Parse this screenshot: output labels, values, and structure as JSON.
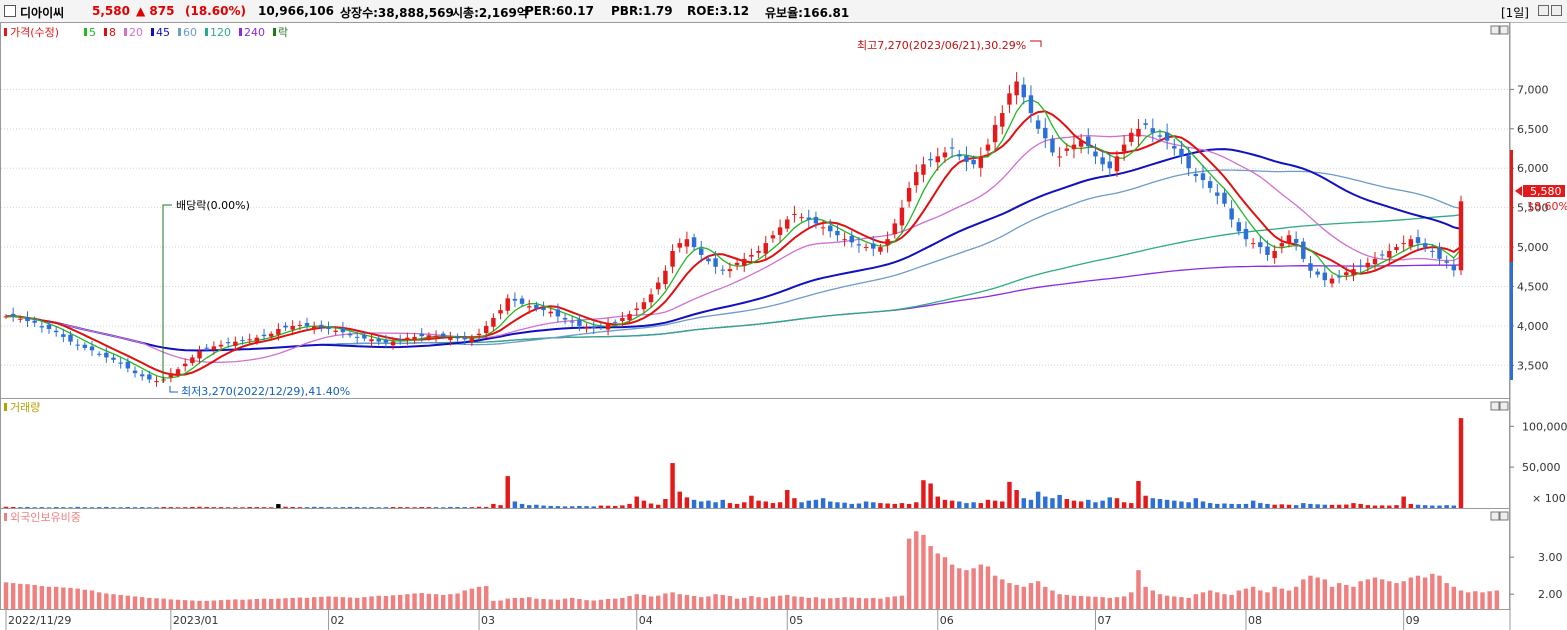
{
  "header": {
    "name": "디아이씨",
    "price": "5,580",
    "change": "▲ 875",
    "change_pct": "(18.60%)",
    "volume": "10,966,106",
    "shares": "상장수:38,888,569",
    "mktcap": "시총:2,169억",
    "per": "PER:60.17",
    "pbr": "PBR:1.79",
    "roe": "ROE:3.12",
    "reserve": "유보율:166.81",
    "period": "[1일]"
  },
  "legend": {
    "price_label": "가격(수정)",
    "ma": [
      {
        "label": "5",
        "color": "#21b821"
      },
      {
        "label": "8",
        "color": "#e01010"
      },
      {
        "label": "20",
        "color": "#d070d0"
      },
      {
        "label": "45",
        "color": "#1010c0"
      },
      {
        "label": "60",
        "color": "#6a9cc8"
      },
      {
        "label": "120",
        "color": "#2eaa88"
      },
      {
        "label": "240",
        "color": "#8a2be2"
      }
    ],
    "ex_label": "락",
    "volume_label": "거래량",
    "foreign_label": "외국인보유비중"
  },
  "annotations": {
    "high": "최고7,270(2023/06/21),30.29%",
    "low": "최저3,270(2022/12/29),41.40%",
    "dividend": "배당락(0.00%)",
    "current_price": "5,580",
    "current_pct": "18.60%"
  },
  "colors": {
    "up": "#e41a1a",
    "down": "#2c6fd6",
    "ma5": "#21b821",
    "ma8": "#e01010",
    "ma20": "#d070d0",
    "ma45": "#1010c0",
    "ma60": "#6a9cc8",
    "ma120": "#2eaa88",
    "ma240": "#8a2be2",
    "foreign": "#f08080"
  },
  "chart_data": [
    {
      "type": "candlestick",
      "title": "가격(수정)",
      "y_ticks": [
        "7,000",
        "6,500",
        "6,000",
        "5,500",
        "5,000",
        "4,500",
        "4,000",
        "3,500"
      ],
      "ylim": [
        3250,
        7500
      ],
      "x_ticks": [
        "2022/11/29",
        "2023/01",
        "02",
        "03",
        "04",
        "05",
        "06",
        "07",
        "08",
        "09"
      ],
      "x_tick_index": [
        0,
        23,
        45,
        66,
        88,
        109,
        130,
        152,
        173,
        195
      ],
      "closes": [
        4120,
        4130,
        4090,
        4060,
        4040,
        3980,
        3960,
        3920,
        3860,
        3800,
        3760,
        3720,
        3690,
        3640,
        3600,
        3570,
        3520,
        3460,
        3400,
        3360,
        3320,
        3300,
        3320,
        3400,
        3450,
        3520,
        3600,
        3680,
        3720,
        3740,
        3760,
        3780,
        3800,
        3810,
        3830,
        3850,
        3870,
        3900,
        3960,
        3980,
        4000,
        4010,
        4000,
        3990,
        3980,
        3960,
        3940,
        3920,
        3880,
        3850,
        3840,
        3830,
        3800,
        3790,
        3800,
        3820,
        3850,
        3860,
        3870,
        3880,
        3870,
        3860,
        3850,
        3840,
        3830,
        3840,
        3900,
        4000,
        4100,
        4200,
        4350,
        4320,
        4280,
        4250,
        4220,
        4200,
        4180,
        4120,
        4080,
        4050,
        4000,
        3980,
        3970,
        3990,
        4020,
        4050,
        4100,
        4150,
        4220,
        4300,
        4400,
        4550,
        4700,
        4950,
        5050,
        5100,
        5000,
        4900,
        4820,
        4750,
        4700,
        4720,
        4800,
        4850,
        4900,
        4950,
        5050,
        5150,
        5250,
        5350,
        5420,
        5380,
        5350,
        5300,
        5250,
        5200,
        5150,
        5100,
        5060,
        5020,
        5000,
        4980,
        5000,
        5100,
        5300,
        5500,
        5750,
        5950,
        6050,
        6100,
        6150,
        6200,
        6250,
        6150,
        6080,
        6050,
        6150,
        6300,
        6550,
        6700,
        6950,
        7100,
        6900,
        6700,
        6500,
        6380,
        6200,
        6150,
        6250,
        6300,
        6350,
        6280,
        6150,
        6050,
        6000,
        6150,
        6300,
        6450,
        6500,
        6550,
        6450,
        6400,
        6350,
        6250,
        6150,
        6000,
        5900,
        5850,
        5750,
        5650,
        5550,
        5350,
        5200,
        5100,
        5050,
        5000,
        4900,
        4950,
        5050,
        5150,
        5050,
        4850,
        4700,
        4650,
        4580,
        4600,
        4620,
        4680,
        4720,
        4750,
        4800,
        4850,
        4900,
        4950,
        5000,
        5050,
        5100,
        5050,
        5000,
        4950,
        4850,
        4800,
        4705,
        5580
      ],
      "series": [
        {
          "name": "5",
          "window": 5
        },
        {
          "name": "8",
          "window": 8
        },
        {
          "name": "20",
          "window": 20
        },
        {
          "name": "45",
          "window": 45
        },
        {
          "name": "60",
          "window": 60
        },
        {
          "name": "120",
          "window": 120
        },
        {
          "name": "240",
          "window": 240
        }
      ],
      "last_close": 5580,
      "last_change_pct": 18.6
    },
    {
      "type": "bar",
      "title": "거래량",
      "y_ticks": [
        "100,000",
        "50,000"
      ],
      "ylim": [
        0,
        115000
      ],
      "values": [
        1500,
        1200,
        1000,
        1300,
        900,
        1100,
        800,
        1200,
        1000,
        900,
        1400,
        1000,
        900,
        1100,
        1300,
        1000,
        900,
        1200,
        1000,
        1100,
        900,
        1000,
        1200,
        1100,
        900,
        1000,
        1300,
        1500,
        1200,
        1000,
        1100,
        900,
        1000,
        900,
        1200,
        1100,
        1000,
        900,
        4800,
        1500,
        1200,
        1000,
        1100,
        1400,
        1300,
        1000,
        900,
        1100,
        1300,
        1200,
        1000,
        1100,
        900,
        1000,
        1200,
        1100,
        1000,
        900,
        1200,
        1100,
        1000,
        900,
        1300,
        1200,
        1100,
        1000,
        1500,
        1300,
        5000,
        3500,
        39000,
        8000,
        5000,
        3500,
        4000,
        3000,
        2500,
        2300,
        2000,
        2100,
        2500,
        2300,
        2000,
        3000,
        2800,
        2500,
        3200,
        5000,
        14000,
        9000,
        5500,
        4000,
        11000,
        55000,
        20000,
        13000,
        10000,
        8000,
        9000,
        7000,
        10000,
        6000,
        5000,
        7000,
        15000,
        9000,
        8000,
        6000,
        7000,
        22000,
        12000,
        7000,
        9000,
        10000,
        12000,
        8000,
        7000,
        6500,
        5000,
        5500,
        8000,
        7000,
        6000,
        5500,
        5000,
        6000,
        5000,
        7000,
        34000,
        30000,
        14000,
        10000,
        9000,
        8000,
        6000,
        7000,
        6000,
        10000,
        9000,
        8000,
        32000,
        22000,
        12000,
        10000,
        20000,
        14000,
        12000,
        16000,
        11000,
        9000,
        8000,
        10000,
        7000,
        9000,
        13000,
        12000,
        7000,
        6000,
        33000,
        15000,
        12000,
        11000,
        10000,
        9000,
        8000,
        7000,
        12000,
        8000,
        6000,
        5000,
        5500,
        5000,
        4800,
        5000,
        9000,
        6000,
        5000,
        4000,
        4500,
        4000,
        3500,
        6000,
        5000,
        4500,
        4000,
        3800,
        4000,
        4200,
        6000,
        5000,
        3500,
        3000,
        3200,
        3000,
        3500,
        14000,
        5000,
        4000,
        3500,
        3000,
        3000,
        3500,
        3000,
        110000
      ]
    },
    {
      "type": "bar",
      "title": "외국인보유비중",
      "y_ticks": [
        "3.00",
        "2.00"
      ],
      "ylim": [
        1.6,
        3.95
      ],
      "values": [
        2.32,
        2.3,
        2.28,
        2.27,
        2.25,
        2.22,
        2.2,
        2.2,
        2.18,
        2.17,
        2.15,
        2.12,
        2.1,
        2.05,
        2.02,
        2.0,
        1.98,
        1.96,
        1.94,
        1.92,
        1.9,
        1.89,
        1.88,
        1.86,
        1.85,
        1.84,
        1.83,
        1.82,
        1.82,
        1.83,
        1.84,
        1.85,
        1.86,
        1.85,
        1.86,
        1.87,
        1.88,
        1.87,
        1.88,
        1.89,
        1.9,
        1.91,
        1.9,
        1.92,
        1.93,
        1.94,
        1.93,
        1.92,
        1.91,
        1.9,
        1.92,
        1.94,
        1.96,
        1.95,
        1.97,
        1.98,
        2.0,
        2.02,
        2.03,
        2.01,
        2.0,
        1.98,
        2.0,
        2.02,
        2.1,
        2.15,
        2.2,
        2.22,
        1.82,
        1.83,
        1.88,
        1.9,
        1.9,
        1.92,
        1.88,
        1.87,
        1.86,
        1.85,
        1.88,
        1.9,
        1.87,
        1.84,
        1.83,
        1.85,
        1.87,
        1.88,
        1.9,
        1.95,
        2.0,
        1.98,
        1.94,
        1.96,
        2.02,
        2.05,
        2.0,
        1.98,
        1.95,
        1.92,
        1.94,
        2.0,
        1.98,
        1.95,
        1.88,
        1.9,
        1.95,
        1.92,
        1.9,
        1.94,
        1.96,
        1.98,
        1.94,
        1.93,
        1.9,
        1.92,
        1.88,
        1.89,
        1.9,
        1.92,
        1.91,
        1.9,
        1.89,
        1.9,
        1.88,
        1.92,
        1.94,
        1.96,
        3.5,
        3.7,
        3.6,
        3.3,
        3.1,
        3.0,
        2.8,
        2.7,
        2.65,
        2.7,
        2.8,
        2.75,
        2.5,
        2.4,
        2.3,
        2.25,
        2.2,
        2.3,
        2.35,
        2.2,
        2.1,
        2.0,
        1.98,
        1.96,
        1.95,
        1.94,
        1.93,
        1.92,
        1.9,
        1.92,
        1.94,
        2.05,
        2.65,
        2.2,
        2.1,
        2.0,
        1.96,
        1.94,
        1.92,
        1.9,
        2.0,
        2.05,
        2.1,
        2.05,
        2.0,
        1.98,
        2.1,
        2.15,
        2.2,
        2.1,
        2.05,
        2.2,
        2.15,
        2.1,
        2.2,
        2.4,
        2.5,
        2.45,
        2.4,
        2.2,
        2.3,
        2.25,
        2.2,
        2.35,
        2.4,
        2.45,
        2.4,
        2.35,
        2.3,
        2.35,
        2.45,
        2.5,
        2.45,
        2.55,
        2.5,
        2.3,
        2.2,
        2.1,
        2.05,
        2.08,
        2.05,
        2.08,
        2.1
      ]
    }
  ]
}
